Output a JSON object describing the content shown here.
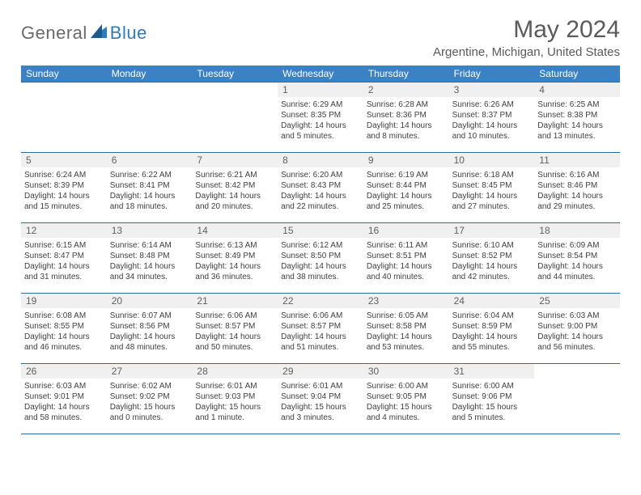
{
  "logo": {
    "general": "General",
    "blue": "Blue"
  },
  "title": "May 2024",
  "location": "Argentine, Michigan, United States",
  "dayNames": [
    "Sunday",
    "Monday",
    "Tuesday",
    "Wednesday",
    "Thursday",
    "Friday",
    "Saturday"
  ],
  "colors": {
    "headerBg": "#3b82c4",
    "headerText": "#ffffff",
    "border": "#2b6aa3",
    "dayNumBg": "#f0f0f0",
    "bodyText": "#404040",
    "logoGray": "#6a6a6a",
    "logoBlue": "#2b7bbf"
  },
  "layout": {
    "columns": 7,
    "rows": 5,
    "cellMinHeight": 86
  },
  "weeks": [
    [
      {
        "n": ""
      },
      {
        "n": ""
      },
      {
        "n": ""
      },
      {
        "n": "1",
        "sr": "Sunrise: 6:29 AM",
        "ss": "Sunset: 8:35 PM",
        "dl": "Daylight: 14 hours and 5 minutes."
      },
      {
        "n": "2",
        "sr": "Sunrise: 6:28 AM",
        "ss": "Sunset: 8:36 PM",
        "dl": "Daylight: 14 hours and 8 minutes."
      },
      {
        "n": "3",
        "sr": "Sunrise: 6:26 AM",
        "ss": "Sunset: 8:37 PM",
        "dl": "Daylight: 14 hours and 10 minutes."
      },
      {
        "n": "4",
        "sr": "Sunrise: 6:25 AM",
        "ss": "Sunset: 8:38 PM",
        "dl": "Daylight: 14 hours and 13 minutes."
      }
    ],
    [
      {
        "n": "5",
        "sr": "Sunrise: 6:24 AM",
        "ss": "Sunset: 8:39 PM",
        "dl": "Daylight: 14 hours and 15 minutes."
      },
      {
        "n": "6",
        "sr": "Sunrise: 6:22 AM",
        "ss": "Sunset: 8:41 PM",
        "dl": "Daylight: 14 hours and 18 minutes."
      },
      {
        "n": "7",
        "sr": "Sunrise: 6:21 AM",
        "ss": "Sunset: 8:42 PM",
        "dl": "Daylight: 14 hours and 20 minutes."
      },
      {
        "n": "8",
        "sr": "Sunrise: 6:20 AM",
        "ss": "Sunset: 8:43 PM",
        "dl": "Daylight: 14 hours and 22 minutes."
      },
      {
        "n": "9",
        "sr": "Sunrise: 6:19 AM",
        "ss": "Sunset: 8:44 PM",
        "dl": "Daylight: 14 hours and 25 minutes."
      },
      {
        "n": "10",
        "sr": "Sunrise: 6:18 AM",
        "ss": "Sunset: 8:45 PM",
        "dl": "Daylight: 14 hours and 27 minutes."
      },
      {
        "n": "11",
        "sr": "Sunrise: 6:16 AM",
        "ss": "Sunset: 8:46 PM",
        "dl": "Daylight: 14 hours and 29 minutes."
      }
    ],
    [
      {
        "n": "12",
        "sr": "Sunrise: 6:15 AM",
        "ss": "Sunset: 8:47 PM",
        "dl": "Daylight: 14 hours and 31 minutes."
      },
      {
        "n": "13",
        "sr": "Sunrise: 6:14 AM",
        "ss": "Sunset: 8:48 PM",
        "dl": "Daylight: 14 hours and 34 minutes."
      },
      {
        "n": "14",
        "sr": "Sunrise: 6:13 AM",
        "ss": "Sunset: 8:49 PM",
        "dl": "Daylight: 14 hours and 36 minutes."
      },
      {
        "n": "15",
        "sr": "Sunrise: 6:12 AM",
        "ss": "Sunset: 8:50 PM",
        "dl": "Daylight: 14 hours and 38 minutes."
      },
      {
        "n": "16",
        "sr": "Sunrise: 6:11 AM",
        "ss": "Sunset: 8:51 PM",
        "dl": "Daylight: 14 hours and 40 minutes."
      },
      {
        "n": "17",
        "sr": "Sunrise: 6:10 AM",
        "ss": "Sunset: 8:52 PM",
        "dl": "Daylight: 14 hours and 42 minutes."
      },
      {
        "n": "18",
        "sr": "Sunrise: 6:09 AM",
        "ss": "Sunset: 8:54 PM",
        "dl": "Daylight: 14 hours and 44 minutes."
      }
    ],
    [
      {
        "n": "19",
        "sr": "Sunrise: 6:08 AM",
        "ss": "Sunset: 8:55 PM",
        "dl": "Daylight: 14 hours and 46 minutes."
      },
      {
        "n": "20",
        "sr": "Sunrise: 6:07 AM",
        "ss": "Sunset: 8:56 PM",
        "dl": "Daylight: 14 hours and 48 minutes."
      },
      {
        "n": "21",
        "sr": "Sunrise: 6:06 AM",
        "ss": "Sunset: 8:57 PM",
        "dl": "Daylight: 14 hours and 50 minutes."
      },
      {
        "n": "22",
        "sr": "Sunrise: 6:06 AM",
        "ss": "Sunset: 8:57 PM",
        "dl": "Daylight: 14 hours and 51 minutes."
      },
      {
        "n": "23",
        "sr": "Sunrise: 6:05 AM",
        "ss": "Sunset: 8:58 PM",
        "dl": "Daylight: 14 hours and 53 minutes."
      },
      {
        "n": "24",
        "sr": "Sunrise: 6:04 AM",
        "ss": "Sunset: 8:59 PM",
        "dl": "Daylight: 14 hours and 55 minutes."
      },
      {
        "n": "25",
        "sr": "Sunrise: 6:03 AM",
        "ss": "Sunset: 9:00 PM",
        "dl": "Daylight: 14 hours and 56 minutes."
      }
    ],
    [
      {
        "n": "26",
        "sr": "Sunrise: 6:03 AM",
        "ss": "Sunset: 9:01 PM",
        "dl": "Daylight: 14 hours and 58 minutes."
      },
      {
        "n": "27",
        "sr": "Sunrise: 6:02 AM",
        "ss": "Sunset: 9:02 PM",
        "dl": "Daylight: 15 hours and 0 minutes."
      },
      {
        "n": "28",
        "sr": "Sunrise: 6:01 AM",
        "ss": "Sunset: 9:03 PM",
        "dl": "Daylight: 15 hours and 1 minute."
      },
      {
        "n": "29",
        "sr": "Sunrise: 6:01 AM",
        "ss": "Sunset: 9:04 PM",
        "dl": "Daylight: 15 hours and 3 minutes."
      },
      {
        "n": "30",
        "sr": "Sunrise: 6:00 AM",
        "ss": "Sunset: 9:05 PM",
        "dl": "Daylight: 15 hours and 4 minutes."
      },
      {
        "n": "31",
        "sr": "Sunrise: 6:00 AM",
        "ss": "Sunset: 9:06 PM",
        "dl": "Daylight: 15 hours and 5 minutes."
      },
      {
        "n": ""
      }
    ]
  ]
}
